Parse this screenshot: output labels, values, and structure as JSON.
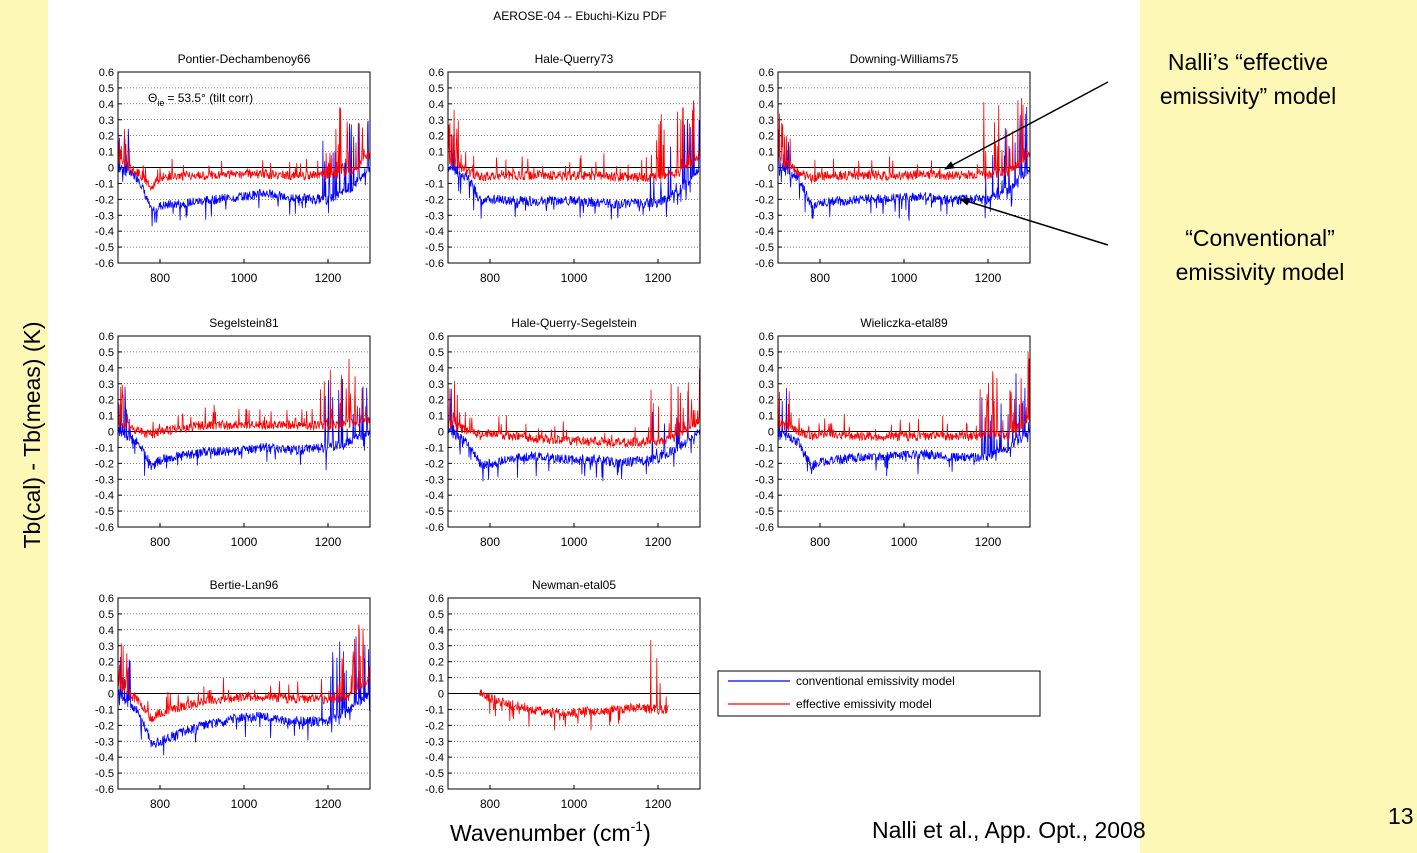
{
  "figure": {
    "suptitle": "AEROSE-04 -- Ebuchi-Kizu PDF",
    "ylabel": "Tb(cal) - Tb(meas) (K)",
    "xlabel_main": "Wavenumber (cm",
    "xlabel_sup": "-1",
    "xlabel_close": ")",
    "annotation_theta": "Θ",
    "annotation_sub": "ie",
    "annotation_value": "= 53.5° (tilt corr)"
  },
  "callouts": {
    "effective_line1": "Nalli’s “effective",
    "effective_line2": "emissivity” model",
    "conventional_line1": "“Conventional”",
    "conventional_line2": "emissivity model"
  },
  "citation": "Nalli et al., App. Opt., 2008",
  "slide_number": "13",
  "legend": {
    "items": [
      {
        "label": "conventional emissivity model",
        "color": "#0000ff"
      },
      {
        "label": "effective emissivity model",
        "color": "#ff0000"
      }
    ]
  },
  "colors": {
    "conventional": "#0000ff",
    "effective": "#ff0000",
    "background": "#fdf8b6"
  },
  "chart_data": [
    {
      "type": "line",
      "title": "Pontier-Dechambenoy66",
      "xlim": [
        700,
        1300
      ],
      "ylim": [
        -0.6,
        0.6
      ],
      "xticks": [
        800,
        1000,
        1200
      ],
      "yticks": [
        "0.6",
        "0.5",
        "0.4",
        "0.3",
        "0.2",
        "0.1",
        "0",
        "-0.1",
        "-0.2",
        "-0.3",
        "-0.4",
        "-0.5",
        "-0.6"
      ],
      "grid": "dotted horizontal",
      "series": [
        {
          "name": "conventional emissivity model",
          "x": [
            700,
            750,
            780,
            800,
            900,
            1000,
            1050,
            1100,
            1200,
            1250,
            1300
          ],
          "y": [
            0.0,
            -0.07,
            -0.28,
            -0.24,
            -0.21,
            -0.18,
            -0.16,
            -0.19,
            -0.2,
            -0.14,
            0.0
          ]
        },
        {
          "name": "effective emissivity model",
          "x": [
            700,
            750,
            780,
            800,
            900,
            1000,
            1050,
            1100,
            1200,
            1250,
            1300
          ],
          "y": [
            0.05,
            -0.04,
            -0.12,
            -0.06,
            -0.05,
            -0.04,
            -0.04,
            -0.05,
            -0.05,
            -0.03,
            0.08
          ]
        }
      ]
    },
    {
      "type": "line",
      "title": "Hale-Querry73",
      "xlim": [
        700,
        1300
      ],
      "ylim": [
        -0.6,
        0.6
      ],
      "xticks": [
        800,
        1000,
        1200
      ],
      "yticks": [
        "0.6",
        "0.5",
        "0.4",
        "0.3",
        "0.2",
        "0.1",
        "0",
        "-0.1",
        "-0.2",
        "-0.3",
        "-0.4",
        "-0.5",
        "-0.6"
      ],
      "grid": "dotted horizontal",
      "series": [
        {
          "name": "conventional emissivity model",
          "x": [
            700,
            750,
            780,
            800,
            900,
            1000,
            1050,
            1100,
            1200,
            1250,
            1300
          ],
          "y": [
            0.0,
            -0.07,
            -0.22,
            -0.2,
            -0.21,
            -0.21,
            -0.22,
            -0.23,
            -0.22,
            -0.15,
            0.0
          ]
        },
        {
          "name": "effective emissivity model",
          "x": [
            700,
            750,
            780,
            800,
            900,
            1000,
            1050,
            1100,
            1200,
            1250,
            1300
          ],
          "y": [
            0.05,
            -0.03,
            -0.06,
            -0.05,
            -0.05,
            -0.05,
            -0.05,
            -0.06,
            -0.06,
            -0.04,
            0.08
          ]
        }
      ]
    },
    {
      "type": "line",
      "title": "Downing-Williams75",
      "xlim": [
        700,
        1300
      ],
      "ylim": [
        -0.6,
        0.6
      ],
      "xticks": [
        800,
        1000,
        1200
      ],
      "yticks": [
        "0.6",
        "0.5",
        "0.4",
        "0.3",
        "0.2",
        "0.1",
        "0",
        "-0.1",
        "-0.2",
        "-0.3",
        "-0.4",
        "-0.5",
        "-0.6"
      ],
      "grid": "dotted horizontal",
      "series": [
        {
          "name": "conventional emissivity model",
          "x": [
            700,
            750,
            780,
            800,
            900,
            1000,
            1050,
            1100,
            1200,
            1250,
            1300
          ],
          "y": [
            0.0,
            -0.07,
            -0.24,
            -0.22,
            -0.2,
            -0.19,
            -0.18,
            -0.2,
            -0.2,
            -0.14,
            0.0
          ]
        },
        {
          "name": "effective emissivity model",
          "x": [
            700,
            750,
            780,
            800,
            900,
            1000,
            1050,
            1100,
            1200,
            1250,
            1300
          ],
          "y": [
            0.05,
            -0.03,
            -0.07,
            -0.05,
            -0.05,
            -0.05,
            -0.04,
            -0.05,
            -0.05,
            -0.03,
            0.08
          ]
        }
      ]
    },
    {
      "type": "line",
      "title": "Segelstein81",
      "xlim": [
        700,
        1300
      ],
      "ylim": [
        -0.6,
        0.6
      ],
      "xticks": [
        800,
        1000,
        1200
      ],
      "yticks": [
        "0.6",
        "0.5",
        "0.4",
        "0.3",
        "0.2",
        "0.1",
        "0",
        "-0.1",
        "-0.2",
        "-0.3",
        "-0.4",
        "-0.5",
        "-0.6"
      ],
      "grid": "dotted horizontal",
      "series": [
        {
          "name": "conventional emissivity model",
          "x": [
            700,
            750,
            780,
            800,
            900,
            1000,
            1050,
            1100,
            1200,
            1250,
            1300
          ],
          "y": [
            0.0,
            -0.07,
            -0.22,
            -0.18,
            -0.13,
            -0.12,
            -0.1,
            -0.12,
            -0.1,
            -0.07,
            0.0
          ]
        },
        {
          "name": "effective emissivity model",
          "x": [
            700,
            750,
            780,
            800,
            900,
            1000,
            1050,
            1100,
            1200,
            1250,
            1300
          ],
          "y": [
            0.05,
            0.0,
            -0.02,
            0.0,
            0.04,
            0.04,
            0.04,
            0.04,
            0.04,
            0.05,
            0.08
          ]
        }
      ]
    },
    {
      "type": "line",
      "title": "Hale-Querry-Segelstein",
      "xlim": [
        700,
        1300
      ],
      "ylim": [
        -0.6,
        0.6
      ],
      "xticks": [
        800,
        1000,
        1200
      ],
      "yticks": [
        "0.6",
        "0.5",
        "0.4",
        "0.3",
        "0.2",
        "0.1",
        "0",
        "-0.1",
        "-0.2",
        "-0.3",
        "-0.4",
        "-0.5",
        "-0.6"
      ],
      "grid": "dotted horizontal",
      "series": [
        {
          "name": "conventional emissivity model",
          "x": [
            700,
            750,
            780,
            800,
            900,
            1000,
            1050,
            1100,
            1200,
            1250,
            1300
          ],
          "y": [
            0.0,
            -0.07,
            -0.22,
            -0.2,
            -0.15,
            -0.18,
            -0.17,
            -0.2,
            -0.17,
            -0.1,
            0.0
          ]
        },
        {
          "name": "effective emissivity model",
          "x": [
            700,
            750,
            780,
            800,
            900,
            1000,
            1050,
            1100,
            1200,
            1250,
            1300
          ],
          "y": [
            0.05,
            0.0,
            -0.03,
            -0.01,
            -0.04,
            -0.06,
            -0.06,
            -0.07,
            -0.06,
            -0.03,
            0.08
          ]
        }
      ]
    },
    {
      "type": "line",
      "title": "Wieliczka-etal89",
      "xlim": [
        700,
        1300
      ],
      "ylim": [
        -0.6,
        0.6
      ],
      "xticks": [
        800,
        1000,
        1200
      ],
      "yticks": [
        "0.6",
        "0.5",
        "0.4",
        "0.3",
        "0.2",
        "0.1",
        "0",
        "-0.1",
        "-0.2",
        "-0.3",
        "-0.4",
        "-0.5",
        "-0.6"
      ],
      "grid": "dotted horizontal",
      "series": [
        {
          "name": "conventional emissivity model",
          "x": [
            700,
            750,
            780,
            800,
            900,
            1000,
            1050,
            1100,
            1200,
            1250,
            1300
          ],
          "y": [
            0.0,
            -0.07,
            -0.22,
            -0.19,
            -0.16,
            -0.15,
            -0.14,
            -0.16,
            -0.16,
            -0.1,
            0.0
          ]
        },
        {
          "name": "effective emissivity model",
          "x": [
            700,
            750,
            780,
            800,
            900,
            1000,
            1050,
            1100,
            1200,
            1250,
            1300
          ],
          "y": [
            0.05,
            0.0,
            -0.03,
            -0.01,
            -0.03,
            -0.03,
            -0.03,
            -0.03,
            -0.03,
            -0.02,
            0.08
          ]
        }
      ]
    },
    {
      "type": "line",
      "title": "Bertie-Lan96",
      "xlim": [
        700,
        1300
      ],
      "ylim": [
        -0.6,
        0.6
      ],
      "xticks": [
        800,
        1000,
        1200
      ],
      "yticks": [
        "0.6",
        "0.5",
        "0.4",
        "0.3",
        "0.2",
        "0.1",
        "0",
        "-0.1",
        "-0.2",
        "-0.3",
        "-0.4",
        "-0.5",
        "-0.6"
      ],
      "grid": "dotted horizontal",
      "series": [
        {
          "name": "conventional emissivity model",
          "x": [
            700,
            750,
            780,
            800,
            900,
            1000,
            1050,
            1100,
            1200,
            1250,
            1300
          ],
          "y": [
            0.0,
            -0.12,
            -0.32,
            -0.3,
            -0.2,
            -0.15,
            -0.14,
            -0.17,
            -0.18,
            -0.1,
            0.0
          ]
        },
        {
          "name": "effective emissivity model",
          "x": [
            700,
            750,
            780,
            800,
            900,
            1000,
            1050,
            1100,
            1200,
            1250,
            1300
          ],
          "y": [
            0.05,
            -0.05,
            -0.16,
            -0.12,
            -0.05,
            -0.02,
            -0.02,
            -0.03,
            -0.04,
            -0.02,
            0.08
          ]
        }
      ]
    },
    {
      "type": "line",
      "title": "Newman-etal05",
      "xlim": [
        700,
        1300
      ],
      "ylim": [
        -0.6,
        0.6
      ],
      "xticks": [
        800,
        1000,
        1200
      ],
      "yticks": [
        "0.6",
        "0.5",
        "0.4",
        "0.3",
        "0.2",
        "0.1",
        "0",
        "-0.1",
        "-0.2",
        "-0.3",
        "-0.4",
        "-0.5",
        "-0.6"
      ],
      "grid": "dotted horizontal",
      "series": [
        {
          "name": "effective emissivity model",
          "x": [
            775,
            800,
            850,
            900,
            950,
            1000,
            1050,
            1100,
            1150,
            1200,
            1225
          ],
          "y": [
            0.0,
            -0.03,
            -0.07,
            -0.1,
            -0.12,
            -0.12,
            -0.11,
            -0.1,
            -0.09,
            -0.1,
            -0.1
          ]
        }
      ]
    }
  ]
}
